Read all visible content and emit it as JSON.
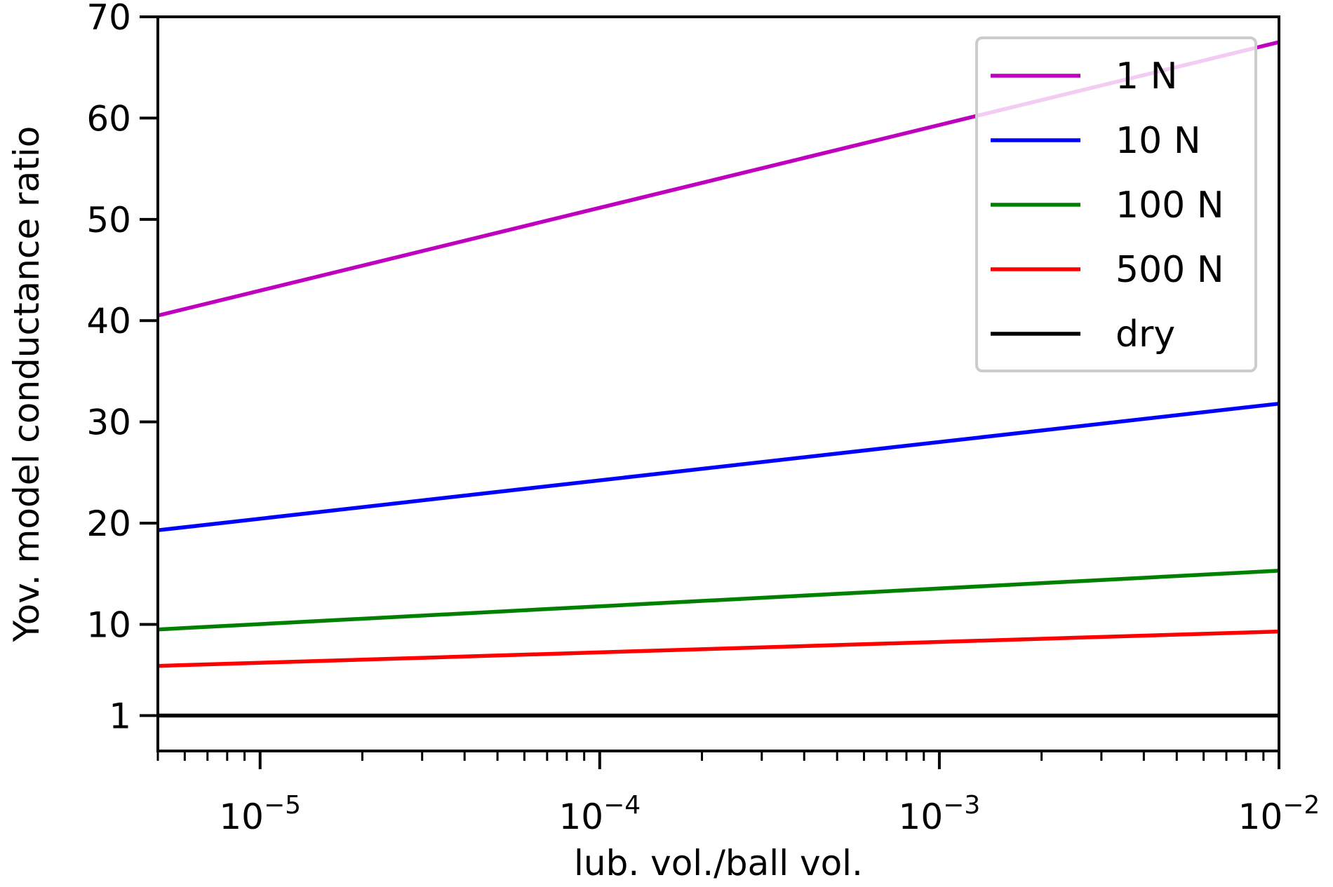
{
  "chart_data": {
    "type": "line",
    "title": "",
    "xlabel": "lub. vol./ball vol.",
    "ylabel": "Yov. model conductance ratio",
    "xscale": "log",
    "xlim": [
      5e-06,
      0.01
    ],
    "ylim": [
      -2.5,
      70
    ],
    "xticks": [
      {
        "value": 1e-05,
        "base": "10",
        "exp": "−5"
      },
      {
        "value": 0.0001,
        "base": "10",
        "exp": "−4"
      },
      {
        "value": 0.001,
        "base": "10",
        "exp": "−3"
      },
      {
        "value": 0.01,
        "base": "10",
        "exp": "−2"
      }
    ],
    "yticks": [
      {
        "value": 1,
        "label": "1"
      },
      {
        "value": 10,
        "label": "10"
      },
      {
        "value": 20,
        "label": "20"
      },
      {
        "value": 30,
        "label": "30"
      },
      {
        "value": 40,
        "label": "40"
      },
      {
        "value": 50,
        "label": "50"
      },
      {
        "value": 60,
        "label": "60"
      },
      {
        "value": 70,
        "label": "70"
      }
    ],
    "legend_position": "top-right",
    "series": [
      {
        "name": "1 N",
        "color": "#bf00bf",
        "x": [
          5e-06,
          0.01
        ],
        "y": [
          40.5,
          67.5
        ]
      },
      {
        "name": "10 N",
        "color": "#0000ff",
        "x": [
          5e-06,
          0.01
        ],
        "y": [
          19.3,
          31.8
        ]
      },
      {
        "name": "100 N",
        "color": "#008000",
        "x": [
          5e-06,
          0.01
        ],
        "y": [
          9.5,
          15.3
        ]
      },
      {
        "name": "500 N",
        "color": "#ff0000",
        "x": [
          5e-06,
          0.01
        ],
        "y": [
          5.9,
          9.3
        ]
      },
      {
        "name": "dry",
        "color": "#000000",
        "x": [
          5e-06,
          0.01
        ],
        "y": [
          1,
          1
        ]
      }
    ]
  }
}
